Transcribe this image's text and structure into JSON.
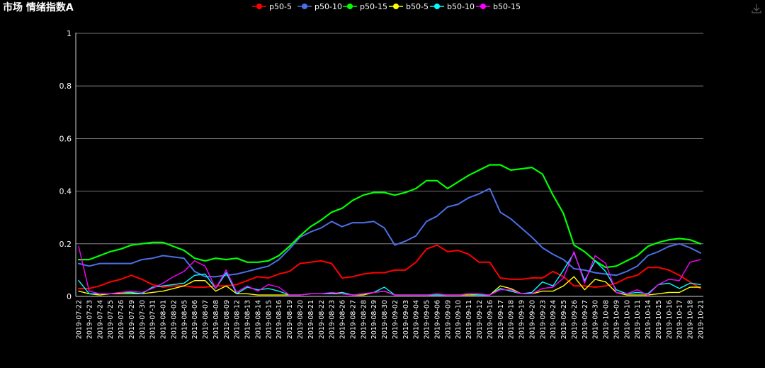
{
  "title": "市场 情绪指数A",
  "chart_data": {
    "type": "line",
    "title": "市场 情绪指数A",
    "xlabel": "",
    "ylabel": "",
    "ylim": [
      0,
      1
    ],
    "yticks": [
      0,
      0.2,
      0.4,
      0.6,
      0.8,
      1
    ],
    "ytick_labels": [
      "0",
      "0.2",
      "0.4",
      "0.6",
      "0.8",
      "1"
    ],
    "grid": true,
    "legend_position": "top-center",
    "x": [
      "2019-07-22",
      "2019-07-23",
      "2019-07-24",
      "2019-07-25",
      "2019-07-26",
      "2019-07-29",
      "2019-07-30",
      "2019-07-31",
      "2019-08-01",
      "2019-08-02",
      "2019-08-05",
      "2019-08-06",
      "2019-08-07",
      "2019-08-08",
      "2019-08-09",
      "2019-08-12",
      "2019-08-13",
      "2019-08-14",
      "2019-08-15",
      "2019-08-16",
      "2019-08-19",
      "2019-08-20",
      "2019-08-21",
      "2019-08-22",
      "2019-08-23",
      "2019-08-26",
      "2019-08-27",
      "2019-08-28",
      "2019-08-29",
      "2019-08-30",
      "2019-09-02",
      "2019-09-03",
      "2019-09-04",
      "2019-09-05",
      "2019-09-06",
      "2019-09-09",
      "2019-09-10",
      "2019-09-11",
      "2019-09-12",
      "2019-09-16",
      "2019-09-17",
      "2019-09-18",
      "2019-09-19",
      "2019-09-20",
      "2019-09-23",
      "2019-09-24",
      "2019-09-25",
      "2019-09-26",
      "2019-09-27",
      "2019-09-30",
      "2019-10-08",
      "2019-10-09",
      "2019-10-10",
      "2019-10-11",
      "2019-10-14",
      "2019-10-15",
      "2019-10-16",
      "2019-10-17",
      "2019-10-18",
      "2019-10-21"
    ],
    "series": [
      {
        "name": "p50-5",
        "color": "#ff0000",
        "width": 2,
        "values": [
          0.03,
          0.03,
          0.04,
          0.055,
          0.065,
          0.08,
          0.065,
          0.045,
          0.035,
          0.04,
          0.04,
          0.035,
          0.035,
          0.04,
          0.04,
          0.045,
          0.06,
          0.075,
          0.07,
          0.085,
          0.095,
          0.125,
          0.13,
          0.135,
          0.125,
          0.07,
          0.075,
          0.085,
          0.09,
          0.09,
          0.1,
          0.1,
          0.13,
          0.18,
          0.195,
          0.17,
          0.175,
          0.16,
          0.13,
          0.13,
          0.07,
          0.065,
          0.065,
          0.07,
          0.07,
          0.095,
          0.075,
          0.04,
          0.04,
          0.035,
          0.04,
          0.05,
          0.07,
          0.08,
          0.11,
          0.11,
          0.1,
          0.08,
          0.055,
          0.03
        ]
      },
      {
        "name": "p50-10",
        "color": "#4b6fe6",
        "width": 2,
        "values": [
          0.125,
          0.115,
          0.125,
          0.125,
          0.125,
          0.125,
          0.14,
          0.145,
          0.155,
          0.15,
          0.145,
          0.095,
          0.075,
          0.075,
          0.08,
          0.085,
          0.095,
          0.105,
          0.115,
          0.14,
          0.18,
          0.225,
          0.245,
          0.26,
          0.285,
          0.265,
          0.28,
          0.28,
          0.285,
          0.26,
          0.195,
          0.21,
          0.23,
          0.285,
          0.305,
          0.34,
          0.35,
          0.375,
          0.39,
          0.41,
          0.32,
          0.295,
          0.26,
          0.225,
          0.185,
          0.16,
          0.14,
          0.105,
          0.1,
          0.09,
          0.085,
          0.08,
          0.095,
          0.115,
          0.155,
          0.17,
          0.19,
          0.2,
          0.185,
          0.165
        ]
      },
      {
        "name": "p50-15",
        "color": "#00ff00",
        "width": 2.2,
        "values": [
          0.14,
          0.14,
          0.155,
          0.17,
          0.18,
          0.195,
          0.2,
          0.205,
          0.205,
          0.19,
          0.175,
          0.145,
          0.135,
          0.145,
          0.14,
          0.145,
          0.13,
          0.13,
          0.135,
          0.155,
          0.19,
          0.23,
          0.265,
          0.29,
          0.32,
          0.335,
          0.365,
          0.385,
          0.395,
          0.395,
          0.385,
          0.395,
          0.41,
          0.44,
          0.44,
          0.41,
          0.435,
          0.46,
          0.48,
          0.5,
          0.5,
          0.48,
          0.485,
          0.49,
          0.465,
          0.385,
          0.315,
          0.195,
          0.17,
          0.135,
          0.11,
          0.115,
          0.135,
          0.155,
          0.19,
          0.205,
          0.215,
          0.22,
          0.215,
          0.2
        ]
      },
      {
        "name": "b50-5",
        "color": "#ffff00",
        "width": 1.4,
        "values": [
          0.02,
          0.01,
          0.005,
          0.01,
          0.01,
          0.01,
          0.01,
          0.015,
          0.02,
          0.03,
          0.04,
          0.06,
          0.06,
          0.02,
          0.04,
          0.01,
          0.01,
          0.005,
          0.005,
          0.005,
          0.005,
          0.005,
          0.01,
          0.01,
          0.01,
          0.01,
          0.005,
          0.005,
          0.015,
          0.02,
          0.005,
          0.005,
          0.005,
          0.005,
          0.005,
          0.005,
          0.005,
          0.005,
          0.005,
          0.005,
          0.04,
          0.03,
          0.01,
          0.01,
          0.02,
          0.02,
          0.04,
          0.075,
          0.025,
          0.065,
          0.055,
          0.015,
          0.005,
          0.005,
          0.005,
          0.01,
          0.015,
          0.015,
          0.035,
          0.035
        ]
      },
      {
        "name": "b50-10",
        "color": "#00ffff",
        "width": 1.4,
        "values": [
          0.06,
          0.01,
          0.01,
          0.01,
          0.015,
          0.015,
          0.01,
          0.035,
          0.04,
          0.045,
          0.05,
          0.08,
          0.085,
          0.03,
          0.09,
          0.01,
          0.035,
          0.025,
          0.03,
          0.02,
          0.005,
          0.005,
          0.01,
          0.01,
          0.01,
          0.015,
          0.005,
          0.01,
          0.015,
          0.035,
          0.005,
          0.005,
          0.005,
          0.005,
          0.005,
          0.005,
          0.005,
          0.01,
          0.005,
          0.005,
          0.03,
          0.02,
          0.01,
          0.015,
          0.055,
          0.04,
          0.1,
          0.165,
          0.06,
          0.135,
          0.095,
          0.025,
          0.01,
          0.015,
          0.01,
          0.045,
          0.05,
          0.03,
          0.05,
          0.045
        ]
      },
      {
        "name": "b50-15",
        "color": "#ff00ff",
        "width": 1.4,
        "values": [
          0.19,
          0.02,
          0.01,
          0.01,
          0.015,
          0.02,
          0.015,
          0.03,
          0.05,
          0.075,
          0.095,
          0.135,
          0.115,
          0.03,
          0.1,
          0.015,
          0.04,
          0.02,
          0.045,
          0.035,
          0.005,
          0.005,
          0.01,
          0.01,
          0.015,
          0.01,
          0.005,
          0.01,
          0.015,
          0.02,
          0.005,
          0.005,
          0.005,
          0.005,
          0.01,
          0.005,
          0.005,
          0.01,
          0.01,
          0.005,
          0.025,
          0.025,
          0.01,
          0.01,
          0.03,
          0.035,
          0.07,
          0.17,
          0.05,
          0.155,
          0.125,
          0.015,
          0.01,
          0.025,
          0.005,
          0.045,
          0.065,
          0.06,
          0.13,
          0.14
        ]
      }
    ]
  }
}
